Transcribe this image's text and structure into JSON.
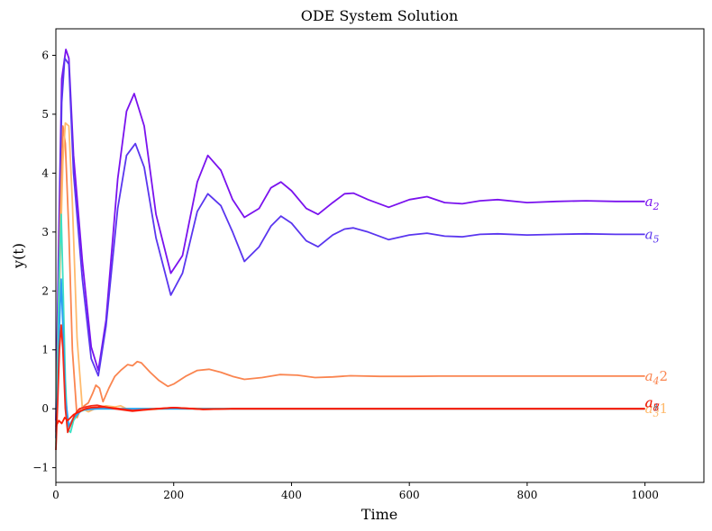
{
  "chart_data": {
    "type": "line",
    "title": "ODE System Solution",
    "xlabel": "Time",
    "ylabel": "y(t)",
    "xlim": [
      0,
      1100
    ],
    "ylim": [
      -1.25,
      6.45
    ],
    "xticks": [
      "0",
      "200",
      "400",
      "600",
      "800",
      "1000"
    ],
    "yticks": [
      "−1",
      "0",
      "1",
      "2",
      "3",
      "4",
      "5",
      "6"
    ],
    "grid": false,
    "series": [
      {
        "label": "a2",
        "color": "#7a12ee",
        "x": [
          0,
          5,
          10,
          17,
          22,
          30,
          45,
          60,
          72,
          85,
          105,
          120,
          133,
          150,
          170,
          195,
          215,
          240,
          258,
          280,
          300,
          320,
          345,
          365,
          382,
          400,
          425,
          445,
          470,
          490,
          505,
          530,
          565,
          600,
          630,
          660,
          690,
          720,
          750,
          800,
          850,
          900,
          950,
          1000
        ],
        "y": [
          -0.2,
          3.0,
          5.6,
          6.1,
          5.95,
          4.3,
          2.5,
          1.05,
          0.65,
          1.5,
          3.9,
          5.05,
          5.35,
          4.8,
          3.3,
          2.3,
          2.6,
          3.85,
          4.3,
          4.05,
          3.55,
          3.25,
          3.4,
          3.75,
          3.85,
          3.7,
          3.4,
          3.3,
          3.5,
          3.65,
          3.66,
          3.55,
          3.42,
          3.55,
          3.6,
          3.5,
          3.48,
          3.53,
          3.55,
          3.5,
          3.52,
          3.53,
          3.52,
          3.52
        ]
      },
      {
        "label": "a5",
        "color": "#5a36ef",
        "x": [
          0,
          5,
          10,
          15,
          22,
          30,
          45,
          60,
          72,
          85,
          105,
          120,
          135,
          150,
          170,
          195,
          215,
          240,
          258,
          280,
          300,
          320,
          345,
          365,
          382,
          400,
          425,
          445,
          470,
          490,
          505,
          530,
          565,
          600,
          630,
          660,
          690,
          720,
          750,
          800,
          850,
          900,
          950,
          1000
        ],
        "y": [
          -0.4,
          2.5,
          5.2,
          5.95,
          5.85,
          4.0,
          2.2,
          0.85,
          0.56,
          1.4,
          3.4,
          4.3,
          4.5,
          4.1,
          2.9,
          1.93,
          2.3,
          3.35,
          3.65,
          3.45,
          3.0,
          2.5,
          2.75,
          3.1,
          3.27,
          3.15,
          2.85,
          2.75,
          2.95,
          3.05,
          3.07,
          3.0,
          2.87,
          2.95,
          2.98,
          2.93,
          2.92,
          2.96,
          2.97,
          2.95,
          2.96,
          2.97,
          2.96,
          2.96
        ]
      },
      {
        "label": "a4 2",
        "color": "#fa8550",
        "x": [
          0,
          4,
          8,
          12,
          16,
          22,
          28,
          36,
          42,
          48,
          55,
          62,
          68,
          74,
          80,
          90,
          100,
          110,
          122,
          130,
          138,
          145,
          160,
          175,
          190,
          200,
          220,
          240,
          260,
          280,
          300,
          320,
          350,
          380,
          410,
          440,
          470,
          500,
          550,
          600,
          650,
          700,
          800,
          900,
          1000
        ],
        "y": [
          -0.5,
          1.5,
          3.5,
          4.8,
          4.5,
          3.0,
          1.0,
          -0.15,
          0.0,
          0.05,
          0.1,
          0.25,
          0.4,
          0.35,
          0.12,
          0.35,
          0.55,
          0.65,
          0.75,
          0.73,
          0.8,
          0.78,
          0.62,
          0.48,
          0.38,
          0.42,
          0.55,
          0.65,
          0.67,
          0.62,
          0.55,
          0.5,
          0.53,
          0.58,
          0.57,
          0.53,
          0.54,
          0.56,
          0.55,
          0.55,
          0.555,
          0.555,
          0.555,
          0.555,
          0.555
        ]
      },
      {
        "label": "a3 1",
        "color": "#ffba6c",
        "x": [
          0,
          4,
          8,
          12,
          16,
          22,
          28,
          36,
          45,
          55,
          70,
          85,
          100,
          110,
          120,
          150,
          200,
          300,
          400,
          500,
          600,
          700,
          800,
          900,
          1000
        ],
        "y": [
          -0.6,
          1.0,
          2.8,
          4.2,
          4.85,
          4.8,
          3.5,
          1.2,
          0.0,
          -0.05,
          0.02,
          0.05,
          0.03,
          0.05,
          0.0,
          -0.02,
          0.01,
          0.0,
          0.0,
          0.0,
          0.0,
          0.0,
          0.0,
          0.0,
          0.0
        ]
      },
      {
        "label": "a6",
        "color": "#3ce0c4",
        "x": [
          0,
          3,
          6,
          9,
          12,
          16,
          20,
          25,
          30,
          40,
          55,
          80,
          120,
          200,
          300,
          500,
          700,
          1000
        ],
        "y": [
          -0.7,
          0.8,
          2.4,
          3.3,
          2.2,
          0.5,
          -0.35,
          -0.4,
          -0.2,
          -0.05,
          0.0,
          0.0,
          0.0,
          0.0,
          0.0,
          0.0,
          0.0,
          0.0
        ]
      },
      {
        "label": "a1",
        "color": "#2b9ef2",
        "x": [
          0,
          3,
          6,
          9,
          12,
          16,
          22,
          30,
          45,
          70,
          120,
          200,
          300,
          500,
          700,
          1000
        ],
        "y": [
          -0.5,
          0.3,
          1.4,
          2.2,
          1.4,
          0.2,
          -0.3,
          -0.15,
          -0.02,
          0.0,
          0.0,
          0.0,
          0.0,
          0.0,
          0.0,
          0.0
        ]
      },
      {
        "label": "a8",
        "color": "#f22a1a",
        "x": [
          0,
          3,
          6,
          9,
          12,
          16,
          20,
          26,
          32,
          40,
          50,
          60,
          70,
          80,
          100,
          130,
          160,
          200,
          250,
          300,
          400,
          500,
          700,
          1000
        ],
        "y": [
          -0.7,
          0.1,
          1.0,
          1.42,
          1.0,
          0.0,
          -0.4,
          -0.25,
          -0.1,
          0.0,
          0.03,
          0.05,
          0.06,
          0.04,
          0.0,
          -0.04,
          -0.01,
          0.02,
          -0.01,
          0.0,
          0.0,
          0.0,
          0.0,
          0.0
        ]
      },
      {
        "label": "a7",
        "color": "#ff1a00",
        "x": [
          0,
          5,
          10,
          15,
          20,
          30,
          40,
          50,
          60,
          80,
          100,
          130,
          170,
          200,
          250,
          300,
          400,
          600,
          1000
        ],
        "y": [
          -0.3,
          -0.2,
          -0.25,
          -0.15,
          -0.2,
          -0.1,
          -0.05,
          0.0,
          0.02,
          0.03,
          0.01,
          -0.03,
          0.0,
          0.02,
          -0.01,
          0.0,
          0.0,
          0.0,
          0.0
        ]
      }
    ],
    "end_labels": [
      {
        "base": "a",
        "sub": "2",
        "suffix": "",
        "color": "#7a12ee",
        "y": 3.52
      },
      {
        "base": "a",
        "sub": "5",
        "suffix": "",
        "color": "#5a36ef",
        "y": 2.96
      },
      {
        "base": "a",
        "sub": "4",
        "suffix": "2",
        "color": "#fa8550",
        "y": 0.555
      },
      {
        "base": "a",
        "sub": "3",
        "suffix": "1",
        "color": "#ffba6c",
        "y": 0.0
      },
      {
        "base": "a",
        "sub": "1",
        "suffix": "",
        "color": "#2b9ef2",
        "y": 0.1
      },
      {
        "base": "a",
        "sub": "6",
        "suffix": "",
        "color": "#3ce0c4",
        "y": 0.1
      },
      {
        "base": "a",
        "sub": "8",
        "suffix": "",
        "color": "#f22a1a",
        "y": 0.1
      },
      {
        "base": "a",
        "sub": "7",
        "suffix": "",
        "color": "#ff1a00",
        "y": 0.1
      }
    ]
  }
}
